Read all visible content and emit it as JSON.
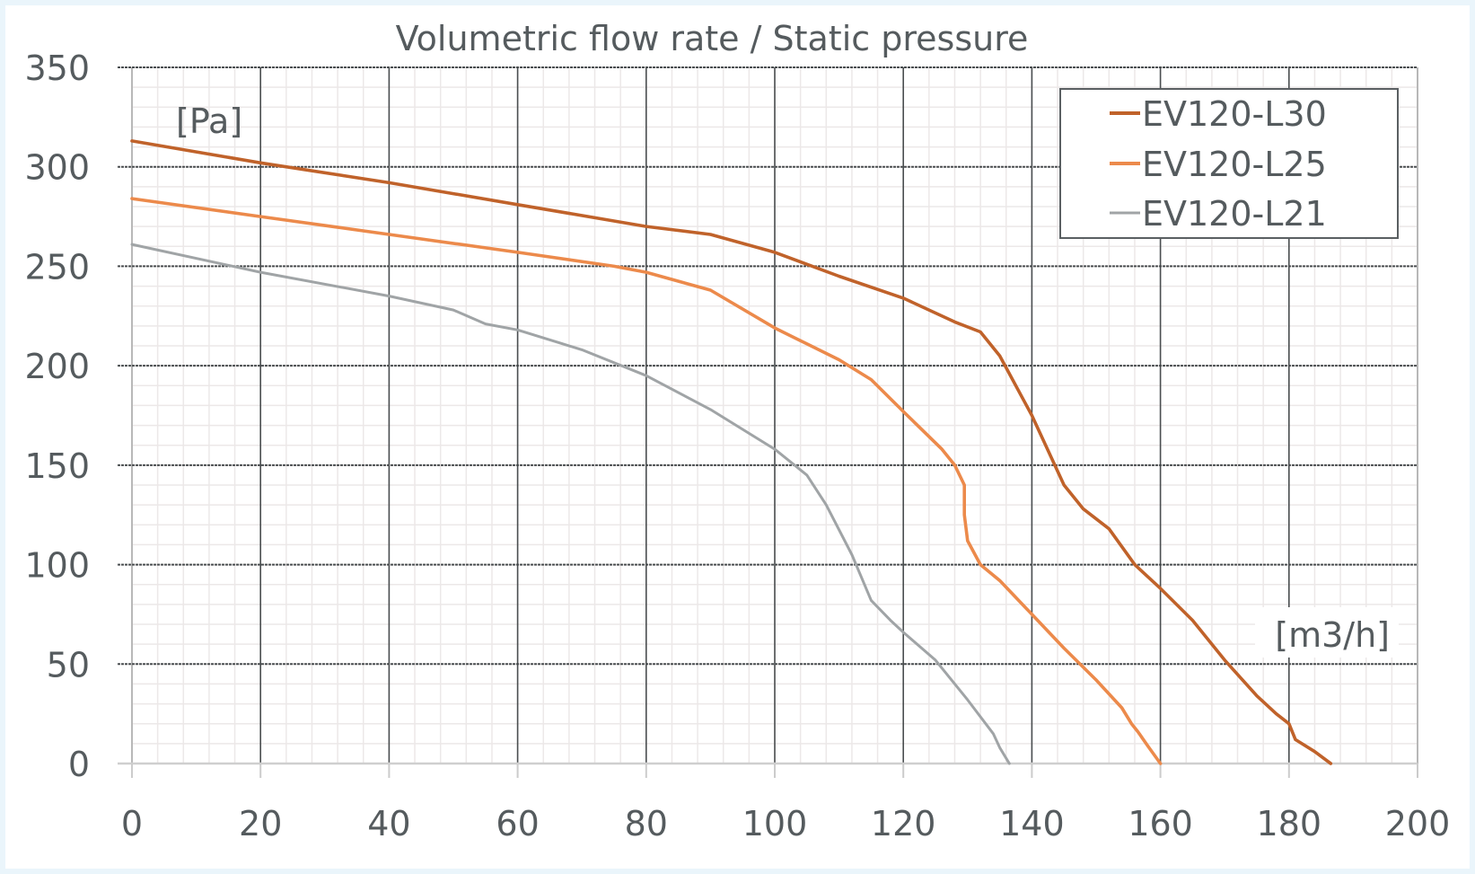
{
  "chart_data": {
    "type": "line",
    "title": "Volumetric flow rate / Static pressure",
    "xlabel": "[m3/h]",
    "ylabel": "[Pa]",
    "xlim": [
      0,
      200
    ],
    "ylim": [
      0,
      350
    ],
    "x_ticks": [
      0,
      20,
      40,
      60,
      80,
      100,
      120,
      140,
      160,
      180,
      200
    ],
    "y_ticks": [
      0,
      50,
      100,
      150,
      200,
      250,
      300,
      350
    ],
    "x_tick_labels": [
      "0",
      "20",
      "40",
      "60",
      "80",
      "100",
      "120",
      "140",
      "160",
      "180",
      "200"
    ],
    "y_tick_labels": [
      "0",
      "50",
      "100",
      "150",
      "200",
      "250",
      "300",
      "350"
    ],
    "grid": true,
    "legend_position": "top-right",
    "series": [
      {
        "name": "EV120-L30",
        "color": "#c0622a",
        "points": [
          [
            0,
            313
          ],
          [
            20,
            302
          ],
          [
            40,
            292
          ],
          [
            60,
            281
          ],
          [
            80,
            270
          ],
          [
            90,
            266
          ],
          [
            100,
            257
          ],
          [
            110,
            245
          ],
          [
            120,
            234
          ],
          [
            128,
            222
          ],
          [
            132,
            217
          ],
          [
            135,
            205
          ],
          [
            140,
            175
          ],
          [
            145,
            140
          ],
          [
            148,
            128
          ],
          [
            152,
            118
          ],
          [
            156,
            100
          ],
          [
            160,
            88
          ],
          [
            165,
            72
          ],
          [
            170,
            52
          ],
          [
            175,
            34
          ],
          [
            178,
            25
          ],
          [
            180,
            20
          ],
          [
            181,
            12
          ],
          [
            184,
            6
          ],
          [
            186.5,
            0
          ]
        ]
      },
      {
        "name": "EV120-L25",
        "color": "#ec8a4b",
        "points": [
          [
            0,
            284
          ],
          [
            20,
            275
          ],
          [
            40,
            266
          ],
          [
            60,
            257
          ],
          [
            75,
            250
          ],
          [
            80,
            247
          ],
          [
            90,
            238
          ],
          [
            100,
            219
          ],
          [
            110,
            203
          ],
          [
            115,
            193
          ],
          [
            120,
            177
          ],
          [
            126,
            158
          ],
          [
            128,
            150
          ],
          [
            129.5,
            140
          ],
          [
            129.5,
            125
          ],
          [
            130,
            112
          ],
          [
            132,
            100
          ],
          [
            135,
            92
          ],
          [
            140,
            75
          ],
          [
            145,
            58
          ],
          [
            150,
            42
          ],
          [
            154,
            28
          ],
          [
            155.5,
            20
          ],
          [
            156.5,
            16
          ],
          [
            158,
            9
          ],
          [
            160,
            0
          ]
        ]
      },
      {
        "name": "EV120-L21",
        "color": "#a0a4a6",
        "points": [
          [
            0,
            261
          ],
          [
            20,
            247
          ],
          [
            40,
            235
          ],
          [
            50,
            228
          ],
          [
            55,
            221
          ],
          [
            60,
            218
          ],
          [
            70,
            208
          ],
          [
            80,
            195
          ],
          [
            90,
            178
          ],
          [
            100,
            158
          ],
          [
            105,
            145
          ],
          [
            108,
            130
          ],
          [
            112,
            105
          ],
          [
            115,
            82
          ],
          [
            118,
            72
          ],
          [
            120,
            66
          ],
          [
            125,
            52
          ],
          [
            130,
            32
          ],
          [
            134,
            15
          ],
          [
            135,
            8
          ],
          [
            136.5,
            0
          ]
        ]
      }
    ]
  }
}
